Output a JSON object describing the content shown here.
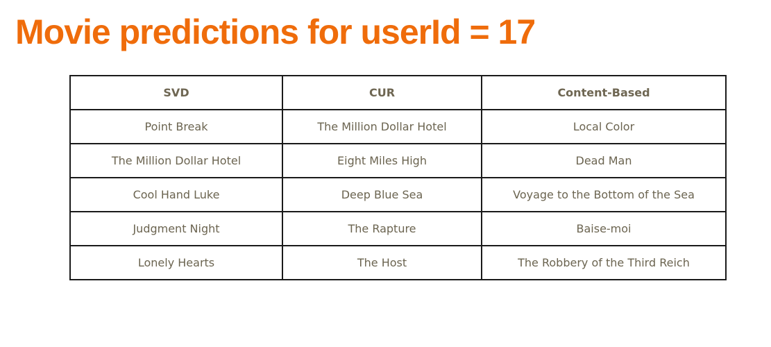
{
  "title": "Movie predictions for userId = 17",
  "table": {
    "headers": [
      "SVD",
      "CUR",
      "Content-Based"
    ],
    "rows": [
      [
        "Point Break",
        "The Million Dollar Hotel",
        "Local Color"
      ],
      [
        "The Million Dollar Hotel",
        "Eight Miles High",
        "Dead Man"
      ],
      [
        "Cool Hand Luke",
        "Deep Blue Sea",
        "Voyage to the Bottom of the Sea"
      ],
      [
        "Judgment Night",
        "The Rapture",
        "Baise-moi"
      ],
      [
        "Lonely Hearts",
        "The Host",
        "The Robbery of the Third Reich"
      ]
    ]
  },
  "colors": {
    "title": "#ef6c0b",
    "text": "#6b6450",
    "border": "#1a1a1a"
  }
}
